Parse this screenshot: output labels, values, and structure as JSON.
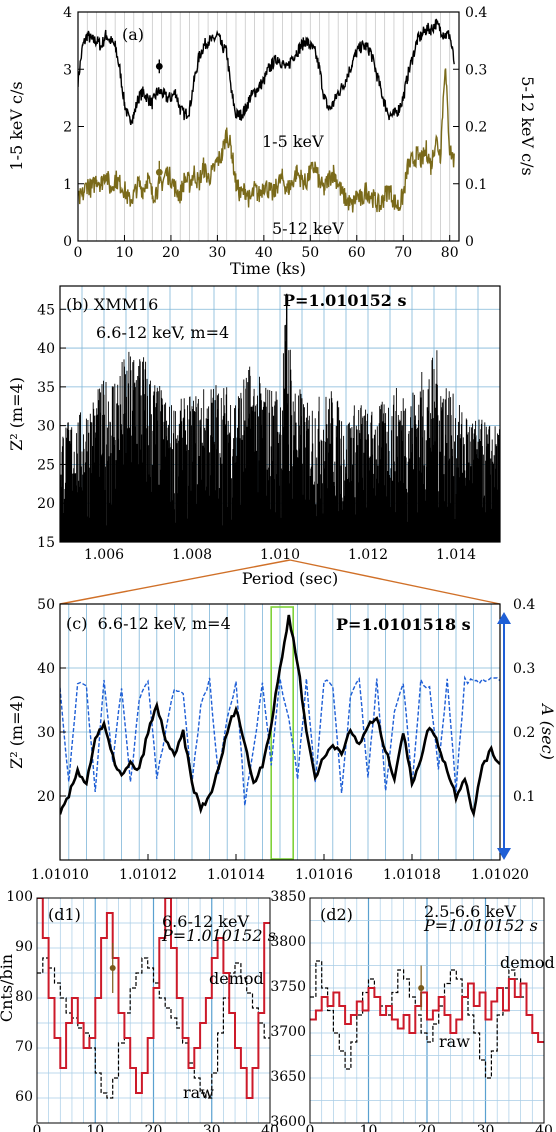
{
  "chart_data": [
    {
      "panel": "a",
      "type": "line",
      "label": "(a)",
      "xlabel": "Time (ks)",
      "ylabel": "1-5 keV c/s",
      "ylabel_right": "5-12 keV c/s",
      "xlim": [
        0,
        82
      ],
      "ylim": [
        0,
        4
      ],
      "ylim_right": [
        0,
        0.4
      ],
      "xticks": [
        "0",
        "10",
        "20",
        "30",
        "40",
        "50",
        "60",
        "70",
        "80"
      ],
      "yticks": [
        "0",
        "1",
        "2",
        "3",
        "4"
      ],
      "yticks_right": [
        "0",
        "0.1",
        "0.2",
        "0.3",
        "0.4"
      ],
      "grid": "vertical",
      "series": [
        {
          "name": "1-5 keV",
          "color": "#000000",
          "axis": "left",
          "x": [
            0,
            1,
            2,
            3,
            4,
            5,
            6,
            7,
            8,
            9,
            10,
            11,
            12,
            13,
            14,
            15,
            16,
            17,
            18,
            19,
            20,
            21,
            22,
            23,
            24,
            25,
            26,
            27,
            28,
            29,
            30,
            31,
            32,
            33,
            34,
            35,
            36,
            37,
            38,
            39,
            40,
            41,
            42,
            43,
            44,
            45,
            46,
            47,
            48,
            49,
            50,
            51,
            52,
            53,
            54,
            55,
            56,
            57,
            58,
            59,
            60,
            61,
            62,
            63,
            64,
            65,
            66,
            67,
            68,
            69,
            70,
            71,
            72,
            73,
            74,
            75,
            76,
            77,
            78,
            79,
            80,
            81
          ],
          "y": [
            2.8,
            3.4,
            3.6,
            3.5,
            3.5,
            3.4,
            3.6,
            3.5,
            3.4,
            3.0,
            2.4,
            2.1,
            2.2,
            2.5,
            2.6,
            2.5,
            2.4,
            2.6,
            2.6,
            2.5,
            2.5,
            2.6,
            2.3,
            2.2,
            2.3,
            2.8,
            3.2,
            3.4,
            3.5,
            3.5,
            3.6,
            3.4,
            3.3,
            2.6,
            2.2,
            2.2,
            2.3,
            2.5,
            2.6,
            2.7,
            2.8,
            3.0,
            3.1,
            3.2,
            3.1,
            3.0,
            3.2,
            3.3,
            3.4,
            3.5,
            3.4,
            3.3,
            3.0,
            2.5,
            2.3,
            2.4,
            2.6,
            2.7,
            2.9,
            3.1,
            3.3,
            3.4,
            3.4,
            3.3,
            3.0,
            2.7,
            2.4,
            2.2,
            2.2,
            2.3,
            2.5,
            2.9,
            3.2,
            3.5,
            3.6,
            3.7,
            3.7,
            3.8,
            3.7,
            3.6,
            3.6,
            3.1
          ]
        },
        {
          "name": "5-12 keV",
          "color": "#7a6a1a",
          "axis": "right",
          "x": [
            0,
            1,
            2,
            3,
            4,
            5,
            6,
            7,
            8,
            9,
            10,
            11,
            12,
            13,
            14,
            15,
            16,
            17,
            18,
            19,
            20,
            21,
            22,
            23,
            24,
            25,
            26,
            27,
            28,
            29,
            30,
            31,
            32,
            33,
            34,
            35,
            36,
            37,
            38,
            39,
            40,
            41,
            42,
            43,
            44,
            45,
            46,
            47,
            48,
            49,
            50,
            51,
            52,
            53,
            54,
            55,
            56,
            57,
            58,
            59,
            60,
            61,
            62,
            63,
            64,
            65,
            66,
            67,
            68,
            69,
            70,
            71,
            72,
            73,
            74,
            75,
            76,
            77,
            78,
            79,
            80,
            81
          ],
          "y": [
            0.07,
            0.08,
            0.1,
            0.09,
            0.11,
            0.1,
            0.12,
            0.09,
            0.11,
            0.1,
            0.09,
            0.07,
            0.08,
            0.1,
            0.09,
            0.11,
            0.08,
            0.09,
            0.1,
            0.12,
            0.11,
            0.09,
            0.08,
            0.11,
            0.1,
            0.12,
            0.1,
            0.13,
            0.11,
            0.12,
            0.14,
            0.15,
            0.19,
            0.16,
            0.1,
            0.08,
            0.09,
            0.07,
            0.09,
            0.08,
            0.1,
            0.09,
            0.08,
            0.1,
            0.11,
            0.09,
            0.1,
            0.12,
            0.11,
            0.1,
            0.12,
            0.13,
            0.1,
            0.09,
            0.11,
            0.12,
            0.1,
            0.08,
            0.07,
            0.06,
            0.08,
            0.07,
            0.09,
            0.08,
            0.07,
            0.06,
            0.08,
            0.09,
            0.07,
            0.06,
            0.08,
            0.13,
            0.14,
            0.15,
            0.14,
            0.16,
            0.13,
            0.18,
            0.15,
            0.31,
            0.16,
            0.14
          ]
        }
      ],
      "error_bars": [
        {
          "axis": "left",
          "x": 17.5,
          "y": 3.05,
          "err": 0.12
        },
        {
          "axis": "right",
          "x": 17.5,
          "y": 0.12,
          "err": 0.02
        }
      ],
      "annotations": [
        "1-5 keV",
        "5-12 keV"
      ]
    },
    {
      "panel": "b",
      "type": "line",
      "title_lines": [
        "(b) XMM16",
        "6.6-12 keV, m=4"
      ],
      "peak_label": "P=1.010152 s",
      "xlabel": "Period (sec)",
      "ylabel": "Z² (m=4)",
      "xlim": [
        1.005,
        1.015
      ],
      "ylim": [
        15,
        48
      ],
      "xticks": [
        "1.006",
        "1.008",
        "1.010",
        "1.012",
        "1.014"
      ],
      "yticks": [
        "15",
        "20",
        "25",
        "30",
        "35",
        "40",
        "45"
      ],
      "grid": "both",
      "peak_x": 1.010152,
      "peak_y": 47,
      "envelope": {
        "x": [
          1.005,
          1.0055,
          1.006,
          1.0063,
          1.0066,
          1.0068,
          1.007,
          1.0075,
          1.008,
          1.0085,
          1.009,
          1.0093,
          1.0096,
          1.01,
          1.01015,
          1.0103,
          1.0106,
          1.0109,
          1.0112,
          1.0115,
          1.0118,
          1.012,
          1.0123,
          1.0126,
          1.013,
          1.0133,
          1.0136,
          1.014,
          1.0145,
          1.015
        ],
        "y": [
          30,
          32,
          36,
          38,
          40,
          42,
          38,
          33,
          34,
          36,
          35,
          38,
          36,
          35,
          47,
          37,
          33,
          34,
          35,
          31,
          34,
          32,
          33,
          35,
          35,
          38,
          40,
          33,
          31,
          30
        ]
      }
    },
    {
      "panel": "c",
      "type": "line",
      "title": "(c)  6.6-12 keV, m=4",
      "peak_label": "P=1.0101518 s",
      "ylabel": "Z² (m=4)",
      "ylabel_right": "A (sec)",
      "xlim": [
        1.0101,
        1.0102
      ],
      "ylim": [
        10,
        50
      ],
      "ylim_right": [
        0,
        0.4
      ],
      "xticks": [
        "1.01010",
        "1.01012",
        "1.01014",
        "1.01016",
        "1.01018",
        "1.01020"
      ],
      "yticks": [
        "20",
        "30",
        "40",
        "50"
      ],
      "yticks_right": [
        "0.1",
        "0.2",
        "0.3",
        "0.4"
      ],
      "highlight_x": [
        1.010148,
        1.010153
      ],
      "series": [
        {
          "name": "Z2",
          "color": "#000000",
          "axis": "left",
          "x": [
            1.0101,
            1.010102,
            1.010104,
            1.010106,
            1.010108,
            1.01011,
            1.010112,
            1.010114,
            1.010116,
            1.010118,
            1.01012,
            1.010122,
            1.010124,
            1.010126,
            1.010128,
            1.01013,
            1.010132,
            1.010134,
            1.010136,
            1.010138,
            1.01014,
            1.010142,
            1.010144,
            1.010146,
            1.010148,
            1.01015,
            1.010152,
            1.010154,
            1.010156,
            1.010158,
            1.01016,
            1.010162,
            1.010164,
            1.010166,
            1.010168,
            1.01017,
            1.010172,
            1.010174,
            1.010176,
            1.010178,
            1.01018,
            1.010182,
            1.010184,
            1.010186,
            1.010188,
            1.01019,
            1.010192,
            1.010194,
            1.010196,
            1.010198,
            1.0102
          ],
          "y": [
            17,
            20,
            24,
            22,
            29,
            31,
            26,
            23,
            25,
            24,
            30,
            34,
            29,
            26,
            30,
            22,
            18,
            20,
            24,
            30,
            34,
            28,
            22,
            25,
            31,
            40,
            48,
            41,
            30,
            23,
            26,
            28,
            27,
            30,
            28,
            31,
            32,
            27,
            23,
            30,
            22,
            26,
            31,
            28,
            24,
            20,
            23,
            17,
            25,
            27,
            25
          ]
        },
        {
          "name": "A",
          "color": "#1f5fd6",
          "axis": "right",
          "style": "dashed",
          "x": [
            1.0101,
            1.010102,
            1.010104,
            1.010106,
            1.010108,
            1.01011,
            1.010112,
            1.010114,
            1.010116,
            1.010118,
            1.01012,
            1.010122,
            1.010124,
            1.010126,
            1.010128,
            1.01013,
            1.010132,
            1.010134,
            1.010136,
            1.010138,
            1.01014,
            1.010142,
            1.010144,
            1.010146,
            1.010148,
            1.01015,
            1.010152,
            1.010154,
            1.010156,
            1.010158,
            1.01016,
            1.010162,
            1.010164,
            1.010166,
            1.010168,
            1.01017,
            1.010172,
            1.010174,
            1.010176,
            1.010178,
            1.01018,
            1.010182,
            1.010184,
            1.010186,
            1.010188,
            1.01019,
            1.010192,
            1.010194,
            1.010196,
            1.010198,
            1.0102
          ],
          "y": [
            0.27,
            0.12,
            0.28,
            0.27,
            0.11,
            0.28,
            0.15,
            0.27,
            0.12,
            0.25,
            0.28,
            0.13,
            0.2,
            0.27,
            0.26,
            0.12,
            0.24,
            0.28,
            0.13,
            0.22,
            0.28,
            0.09,
            0.17,
            0.28,
            0.15,
            0.28,
            0.22,
            0.13,
            0.28,
            0.12,
            0.28,
            0.27,
            0.1,
            0.26,
            0.28,
            0.13,
            0.28,
            0.11,
            0.23,
            0.28,
            0.12,
            0.28,
            0.27,
            0.14,
            0.28,
            0.11,
            0.28,
            0.28,
            0.28,
            0.28,
            0.28
          ]
        }
      ]
    },
    {
      "panel": "d1",
      "type": "line",
      "label": "(d1)",
      "energy": "6.6-12 keV",
      "period": "P=1.010152 s",
      "ylabel": "Cnts/bin",
      "xlim": [
        0,
        40
      ],
      "ylim": [
        55,
        100
      ],
      "xticks": [
        "0",
        "10",
        "20",
        "30",
        "40"
      ],
      "yticks": [
        "60",
        "70",
        "80",
        "90",
        "100"
      ],
      "error_bar": {
        "x": 13,
        "y": 86,
        "err": 5
      },
      "series": [
        {
          "name": "demod",
          "color": "#cc1a2a",
          "style": "step",
          "values": [
            100,
            92,
            80,
            72,
            66,
            75,
            80,
            75,
            70,
            72,
            80,
            92,
            97,
            88,
            77,
            72,
            66,
            61,
            65,
            72,
            82,
            92,
            100,
            90,
            80,
            72,
            66,
            70,
            75,
            80,
            88,
            92,
            85,
            77,
            70,
            66,
            60,
            66,
            77,
            95
          ]
        },
        {
          "name": "raw",
          "color": "#000000",
          "style": "dashed-step",
          "values": [
            85,
            88,
            86,
            83,
            80,
            77,
            76,
            74,
            73,
            70,
            65,
            61,
            60,
            64,
            71,
            77,
            82,
            85,
            88,
            86,
            83,
            80,
            78,
            76,
            74,
            71,
            67,
            64,
            61,
            60,
            65,
            73,
            80,
            85,
            87,
            84,
            81,
            78,
            75,
            72
          ]
        }
      ]
    },
    {
      "panel": "d2",
      "type": "line",
      "label": "(d2)",
      "energy": "2.5-6.6 keV",
      "period": "P=1.010152 s",
      "xlim": [
        0,
        40
      ],
      "ylim": [
        3600,
        3850
      ],
      "xticks": [
        "0",
        "10",
        "20",
        "30",
        "40"
      ],
      "yticks": [
        "3600",
        "3650",
        "3700",
        "3750",
        "3800",
        "3850"
      ],
      "error_bar": {
        "x": 19,
        "y": 3750,
        "err": 25
      },
      "series": [
        {
          "name": "demod",
          "color": "#cc1a2a",
          "style": "step",
          "values": [
            3715,
            3725,
            3740,
            3730,
            3745,
            3730,
            3710,
            3720,
            3735,
            3725,
            3750,
            3740,
            3720,
            3730,
            3715,
            3705,
            3720,
            3700,
            3730,
            3745,
            3715,
            3725,
            3740,
            3720,
            3700,
            3715,
            3740,
            3755,
            3730,
            3745,
            3715,
            3735,
            3750,
            3725,
            3760,
            3740,
            3755,
            3720,
            3700,
            3690
          ]
        },
        {
          "name": "raw",
          "color": "#000000",
          "style": "dashed-step",
          "values": [
            3740,
            3780,
            3750,
            3725,
            3700,
            3680,
            3660,
            3690,
            3720,
            3745,
            3760,
            3740,
            3730,
            3720,
            3745,
            3770,
            3760,
            3740,
            3720,
            3700,
            3690,
            3710,
            3730,
            3755,
            3770,
            3760,
            3740,
            3720,
            3700,
            3670,
            3650,
            3680,
            3720,
            3750,
            3770,
            3760,
            3740,
            3720,
            3700,
            3690
          ]
        }
      ]
    }
  ]
}
